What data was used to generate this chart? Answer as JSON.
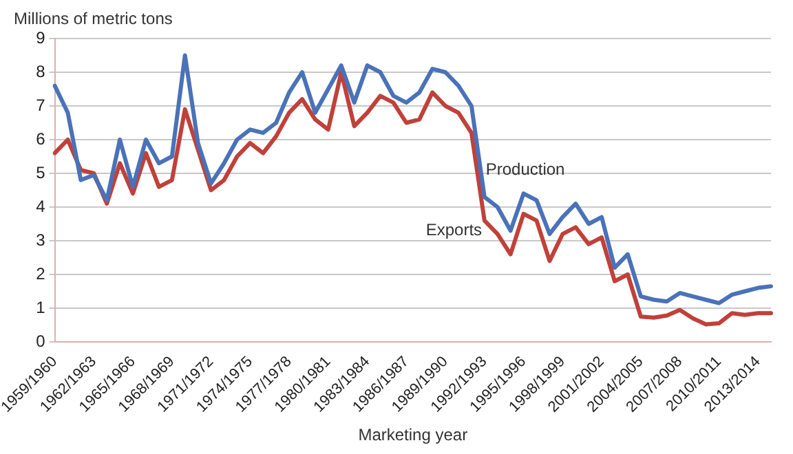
{
  "chart_data": {
    "type": "line",
    "ylabel": "Millions of metric tons",
    "xlabel": "Marketing year",
    "categories": [
      "1959/1960",
      null,
      null,
      "1962/1963",
      null,
      null,
      "1965/1966",
      null,
      null,
      "1968/1969",
      null,
      null,
      "1971/1972",
      null,
      null,
      "1974/1975",
      null,
      null,
      "1977/1978",
      null,
      null,
      "1980/1981",
      null,
      null,
      "1983/1984",
      null,
      null,
      "1986/1987",
      null,
      null,
      "1989/1990",
      null,
      null,
      "1992/1993",
      null,
      null,
      "1995/1996",
      null,
      null,
      "1998/1999",
      null,
      null,
      "2001/2002",
      null,
      null,
      "2004/2005",
      null,
      null,
      "2007/2008",
      null,
      null,
      "2010/2011",
      null,
      null,
      "2013/2014",
      null
    ],
    "series": [
      {
        "name": "Production",
        "color": "#4a72b8",
        "values": [
          7.6,
          6.8,
          4.8,
          4.95,
          4.2,
          6.0,
          4.6,
          6.0,
          5.3,
          5.5,
          8.5,
          5.9,
          4.7,
          5.3,
          6.0,
          6.3,
          6.2,
          6.5,
          7.4,
          8.0,
          6.8,
          7.5,
          8.2,
          7.1,
          8.2,
          8.0,
          7.3,
          7.1,
          7.4,
          8.1,
          8.0,
          7.6,
          7.0,
          4.3,
          4.0,
          3.3,
          4.4,
          4.2,
          3.2,
          3.7,
          4.1,
          3.5,
          3.7,
          2.2,
          2.6,
          1.35,
          1.25,
          1.2,
          1.45,
          1.35,
          1.25,
          1.15,
          1.4,
          1.5,
          1.6,
          1.65
        ]
      },
      {
        "name": "Exports",
        "color": "#c0413a",
        "values": [
          5.6,
          6.0,
          5.1,
          5.0,
          4.1,
          5.3,
          4.4,
          5.6,
          4.6,
          4.8,
          6.9,
          5.7,
          4.5,
          4.8,
          5.5,
          5.9,
          5.6,
          6.1,
          6.8,
          7.2,
          6.6,
          6.3,
          8.0,
          6.4,
          6.8,
          7.3,
          7.1,
          6.5,
          6.6,
          7.4,
          7.0,
          6.8,
          6.2,
          3.6,
          3.2,
          2.6,
          3.8,
          3.6,
          2.4,
          3.2,
          3.4,
          2.9,
          3.1,
          1.8,
          2.0,
          0.75,
          0.72,
          0.78,
          0.95,
          0.7,
          0.52,
          0.55,
          0.85,
          0.8,
          0.85,
          0.85
        ]
      }
    ],
    "ylim": [
      0,
      9
    ],
    "yticks": [
      0,
      1,
      2,
      3,
      4,
      5,
      6,
      7,
      8,
      9
    ],
    "grid": "y",
    "legend": false,
    "marker": "none",
    "line_style": "solid"
  }
}
